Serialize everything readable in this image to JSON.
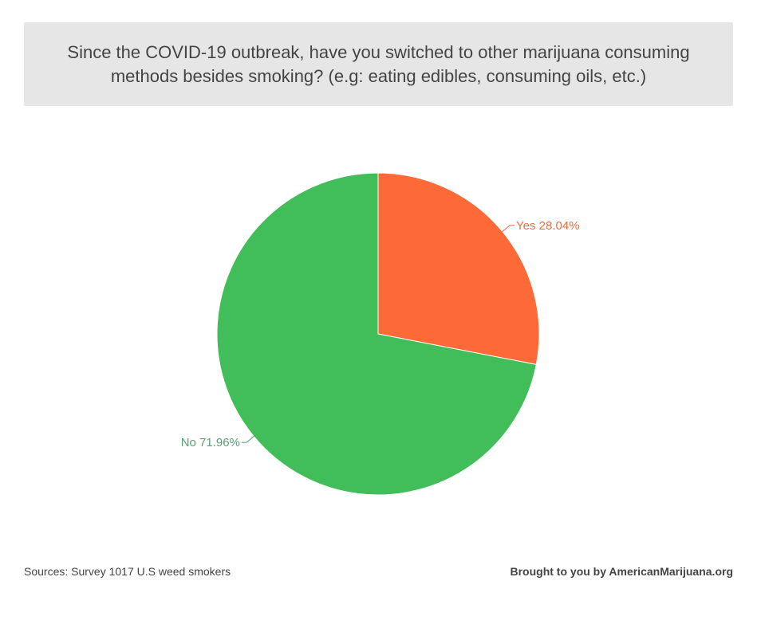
{
  "title": "Since the COVID-19 outbreak, have you switched to other marijuana consuming methods besides smoking? (e.g: eating edibles, consuming oils, etc.)",
  "chart_data": {
    "type": "pie",
    "title": "Since the COVID-19 outbreak, have you switched to other marijuana consuming methods besides smoking? (e.g: eating edibles, consuming oils, etc.)",
    "slices": [
      {
        "label": "Yes",
        "value": 28.04,
        "display": "Yes 28.04%",
        "color": "#fd6a37",
        "label_color": "#f06c3e"
      },
      {
        "label": "No",
        "value": 71.96,
        "display": "No 71.96%",
        "color": "#41be59",
        "label_color": "#5a9e73"
      }
    ],
    "unit": "%"
  },
  "footer": {
    "source": "Sources: Survey 1017 U.S weed smokers",
    "credit": "Brought to you by AmericanMarijuana.org"
  }
}
